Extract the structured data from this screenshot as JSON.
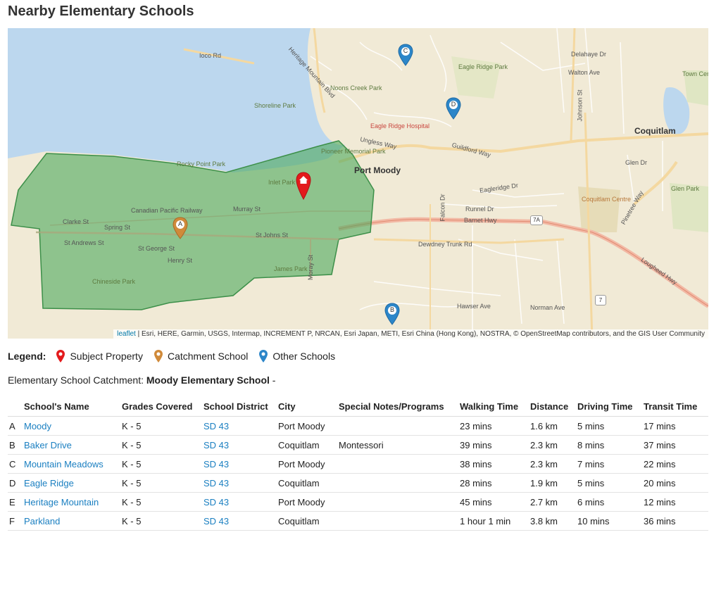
{
  "title": "Nearby Elementary Schools",
  "map": {
    "labels": {
      "port_moody": "Port Moody",
      "coquitlam": "Coquitlam",
      "ioco_rd": "Ioco Rd",
      "heritage_mountain_blvd": "Heritage Mountain Blvd",
      "noons_creek_park": "Noons Creek Park",
      "shoreline_park": "Shoreline Park",
      "eagle_ridge_hospital": "Eagle Ridge Hospital",
      "eagle_ridge_park": "Eagle Ridge Park",
      "walton_ave": "Walton Ave",
      "delahaye_dr": "Delahaye Dr",
      "town_centre_park": "Town Centre Park",
      "guildford_way": "Guildford Way",
      "ungless_way": "Ungless Way",
      "pioneer_memorial_park": "Pioneer Memorial Park",
      "glen_dr": "Glen Dr",
      "glen_park": "Glen Park",
      "rocky_point_park": "Rocky Point Park",
      "inlet_park": "Inlet Park",
      "murray_st": "Murray St",
      "cpr": "Canadian Pacific Railway",
      "eagleridge_dr": "Eagleridge Dr",
      "runnel_dr": "Runnel Dr",
      "barnet_hwy": "Barnet Hwy",
      "coquitlam_centre": "Coquitlam Centre",
      "clarke_st": "Clarke St",
      "spring_st": "Spring St",
      "st_johns_st": "St Johns St",
      "st_andrews_st": "St Andrews St",
      "st_george_st": "St George St",
      "henry_st": "Henry St",
      "dewdney_trunk_rd": "Dewdney Trunk Rd",
      "chineside_park": "Chineside Park",
      "james_park": "James Park",
      "hawser_ave": "Hawser Ave",
      "norman_ave": "Norman Ave",
      "lougheed_hwy": "Lougheed Hwy",
      "pinetree_way": "Pinetree Way",
      "falcon_dr": "Falcon Dr",
      "johnson_st": "Johnson St",
      "moray_st": "Moray St",
      "hwy_7a": "7A",
      "hwy_7": "7"
    },
    "markers": {
      "a": "A",
      "b": "B",
      "c": "C",
      "d": "D"
    },
    "attribution_link": "leaflet",
    "attribution_text": " | Esri, HERE, Garmin, USGS, Intermap, INCREMENT P, NRCAN, Esri Japan, METI, Esri China (Hong Kong), NOSTRA, © OpenStreetMap contributors, and the GIS User Community"
  },
  "legend": {
    "label": "Legend:",
    "items": [
      "Subject Property",
      "Catchment School",
      "Other Schools"
    ],
    "colors": {
      "subject": "#e31a1c",
      "catchment": "#d08a3a",
      "other": "#2c86c9"
    }
  },
  "catchment": {
    "label": "Elementary School Catchment: ",
    "school": "Moody Elementary School",
    "suffix": " -"
  },
  "table": {
    "headers": [
      "",
      "School's Name",
      "Grades Covered",
      "School District",
      "City",
      "Special Notes/Programs",
      "Walking Time",
      "Distance",
      "Driving Time",
      "Transit Time"
    ],
    "rows": [
      {
        "letter": "A",
        "name": "Moody",
        "grades": "K - 5",
        "district": "SD 43",
        "city": "Port Moody",
        "notes": "",
        "walk": "23 mins",
        "distance": "1.6 km",
        "drive": "5 mins",
        "transit": "17 mins"
      },
      {
        "letter": "B",
        "name": "Baker Drive",
        "grades": "K - 5",
        "district": "SD 43",
        "city": "Coquitlam",
        "notes": "Montessori",
        "walk": "39 mins",
        "distance": "2.3 km",
        "drive": "8 mins",
        "transit": "37 mins"
      },
      {
        "letter": "C",
        "name": "Mountain Meadows",
        "grades": "K - 5",
        "district": "SD 43",
        "city": "Port Moody",
        "notes": "",
        "walk": "38 mins",
        "distance": "2.3 km",
        "drive": "7 mins",
        "transit": "22 mins"
      },
      {
        "letter": "D",
        "name": "Eagle Ridge",
        "grades": "K - 5",
        "district": "SD 43",
        "city": "Coquitlam",
        "notes": "",
        "walk": "28 mins",
        "distance": "1.9 km",
        "drive": "5 mins",
        "transit": "20 mins"
      },
      {
        "letter": "E",
        "name": "Heritage Mountain",
        "grades": "K - 5",
        "district": "SD 43",
        "city": "Port Moody",
        "notes": "",
        "walk": "45 mins",
        "distance": "2.7 km",
        "drive": "6 mins",
        "transit": "12 mins"
      },
      {
        "letter": "F",
        "name": "Parkland",
        "grades": "K - 5",
        "district": "SD 43",
        "city": "Coquitlam",
        "notes": "",
        "walk": "1 hour 1 min",
        "distance": "3.8 km",
        "drive": "10 mins",
        "transit": "36 mins"
      }
    ]
  }
}
